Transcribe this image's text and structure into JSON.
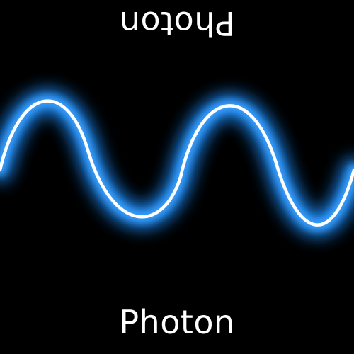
{
  "labels": {
    "top": "Photon",
    "bottom": "Photon"
  },
  "colors": {
    "background": "#000000",
    "glow": "#1e8fff",
    "core": "#ffffff",
    "text": "#ffffff"
  }
}
